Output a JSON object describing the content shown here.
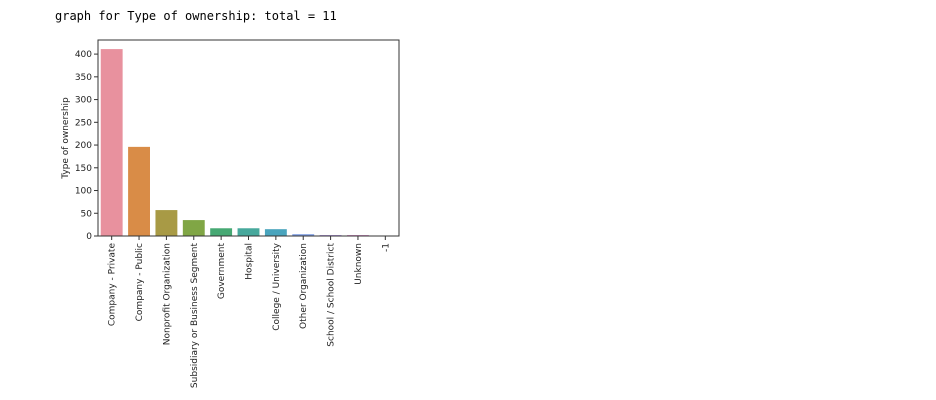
{
  "chart_data": {
    "type": "bar",
    "title": "graph for Type of ownership: total = 11",
    "y_label": "Type of ownership",
    "categories": [
      "Company - Private",
      "Company - Public",
      "Nonprofit Organization",
      "Subsidiary or Business Segment",
      "Government",
      "Hospital",
      "College / University",
      "Other Organization",
      "School / School District",
      "Unknown",
      "-1"
    ],
    "values": [
      411,
      196,
      57,
      35,
      17,
      17,
      15,
      4,
      2,
      2,
      1
    ],
    "colors": [
      "#e8919e",
      "#d98c47",
      "#a89a45",
      "#80a645",
      "#46a873",
      "#47a89c",
      "#49a4bd",
      "#7f9ee3",
      "#b08ce3",
      "#d985c9",
      "#e58aa6"
    ],
    "ylim": [
      0,
      431
    ],
    "yticks": [
      0,
      50,
      100,
      150,
      200,
      250,
      300,
      350,
      400
    ]
  }
}
